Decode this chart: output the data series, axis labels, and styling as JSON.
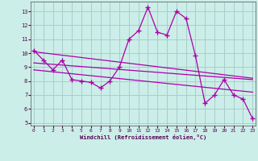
{
  "xlabel": "Windchill (Refroidissement éolien,°C)",
  "bg_color": "#cceee8",
  "grid_color": "#aacccc",
  "line_color": "#aa00aa",
  "x_values": [
    0,
    1,
    2,
    3,
    4,
    5,
    6,
    7,
    8,
    9,
    10,
    11,
    12,
    13,
    14,
    15,
    16,
    17,
    18,
    19,
    20,
    21,
    22,
    23
  ],
  "main_series": [
    10.2,
    9.5,
    8.8,
    9.5,
    8.1,
    8.0,
    7.9,
    7.5,
    8.0,
    9.0,
    11.0,
    11.6,
    13.3,
    11.5,
    11.3,
    13.0,
    12.5,
    9.8,
    6.4,
    7.0,
    8.1,
    7.0,
    6.7,
    5.3
  ],
  "trend1_x": [
    0,
    23
  ],
  "trend1_y": [
    10.1,
    8.2
  ],
  "trend2_x": [
    0,
    23
  ],
  "trend2_y": [
    9.3,
    8.1
  ],
  "trend3_x": [
    0,
    23
  ],
  "trend3_y": [
    8.8,
    7.2
  ],
  "ylim": [
    4.8,
    13.7
  ],
  "xlim": [
    -0.3,
    23.3
  ],
  "yticks": [
    5,
    6,
    7,
    8,
    9,
    10,
    11,
    12,
    13
  ],
  "xticks": [
    0,
    1,
    2,
    3,
    4,
    5,
    6,
    7,
    8,
    9,
    10,
    11,
    12,
    13,
    14,
    15,
    16,
    17,
    18,
    19,
    20,
    21,
    22,
    23
  ],
  "tick_color": "#550055",
  "spine_color": "#666666"
}
